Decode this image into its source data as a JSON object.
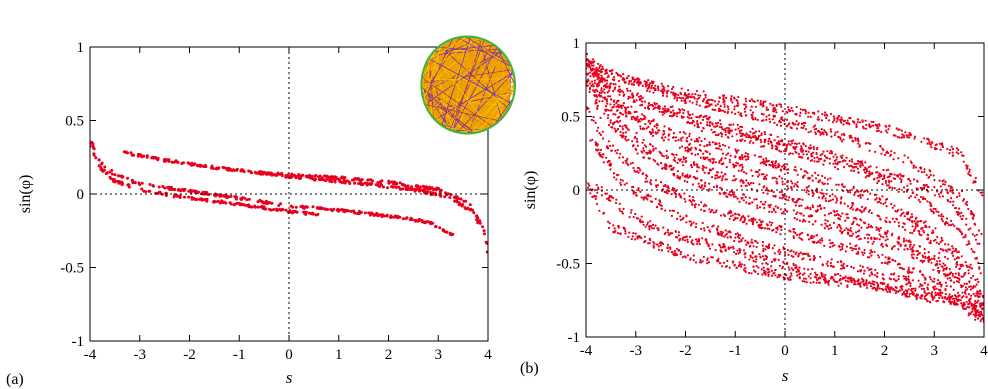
{
  "chart_data": [
    {
      "panel_label": "(a)",
      "type": "scatter",
      "xlabel": "s",
      "ylabel": "sin(φ)",
      "xlim": [
        -4,
        4
      ],
      "ylim": [
        -1,
        1
      ],
      "xticks": [
        "-4",
        "-3",
        "-2",
        "-1",
        "0",
        "1",
        "2",
        "3",
        "4"
      ],
      "yticks": [
        "-1",
        "-0.5",
        "0",
        "0.5",
        "1"
      ],
      "point_color": "#e8001c",
      "reference_lines": {
        "x": 0,
        "y": 0
      },
      "series": [
        {
          "x": [
            -4.0,
            -3.8,
            -3.5,
            -3.0,
            -2.0,
            -1.0,
            0.0,
            1.0,
            2.0,
            2.8,
            3.3
          ],
          "y": [
            0.38,
            0.22,
            0.13,
            0.07,
            0.02,
            -0.03,
            -0.08,
            -0.11,
            -0.15,
            -0.19,
            -0.28
          ]
        },
        {
          "x": [
            -3.3,
            -2.5,
            -1.5,
            0.0,
            1.5,
            2.5,
            3.2,
            3.7,
            3.95,
            4.0
          ],
          "y": [
            0.28,
            0.23,
            0.18,
            0.12,
            0.07,
            0.03,
            -0.02,
            -0.12,
            -0.3,
            -0.4
          ]
        },
        {
          "x": [
            -4.0,
            -3.8,
            -3.5,
            -3.0,
            -2.0,
            -1.0,
            0.0,
            0.6
          ],
          "y": [
            0.33,
            0.18,
            0.09,
            0.03,
            -0.03,
            -0.07,
            -0.12,
            -0.14
          ]
        },
        {
          "x": [
            -0.8,
            0.0,
            1.0,
            2.0,
            3.0,
            3.6,
            3.9,
            4.0
          ],
          "y": [
            0.15,
            0.13,
            0.11,
            0.08,
            0.03,
            -0.06,
            -0.22,
            -0.36
          ]
        }
      ],
      "inset": {
        "description": "billiard",
        "colors": [
          "#f5c400",
          "#e89a00",
          "#7a2fb0",
          "#b03060",
          "#3cb43c"
        ]
      }
    },
    {
      "panel_label": "(b)",
      "type": "scatter",
      "xlabel": "s",
      "ylabel": "sin(φ)",
      "xlim": [
        -4,
        4
      ],
      "ylim": [
        -1,
        1
      ],
      "xticks": [
        "-4",
        "-3",
        "-2",
        "-1",
        "0",
        "1",
        "2",
        "3",
        "4"
      ],
      "yticks": [
        "-1",
        "-0.5",
        "0",
        "0.5",
        "1"
      ],
      "point_color": "#e8001c",
      "reference_lines": {
        "x": 0,
        "y": 0
      },
      "series": [
        {
          "x": [
            -4.0,
            -3.5,
            -2.0,
            0.0,
            2.0,
            3.5,
            4.0
          ],
          "y": [
            0.9,
            0.78,
            0.66,
            0.55,
            0.42,
            0.25,
            -0.05
          ]
        },
        {
          "x": [
            -4.0,
            -3.6,
            -2.5,
            -1.0,
            0.5,
            2.0,
            3.3,
            3.9
          ],
          "y": [
            0.85,
            0.72,
            0.56,
            0.42,
            0.28,
            0.12,
            -0.05,
            -0.35
          ]
        },
        {
          "x": [
            -4.0,
            -3.6,
            -2.8,
            -1.5,
            0.0,
            1.5,
            2.8,
            3.6,
            4.0
          ],
          "y": [
            0.8,
            0.62,
            0.42,
            0.22,
            0.05,
            -0.12,
            -0.3,
            -0.55,
            -0.75
          ]
        },
        {
          "x": [
            -4.0,
            -3.7,
            -3.0,
            -2.0,
            -0.5,
            1.0,
            2.5,
            3.5,
            3.95
          ],
          "y": [
            0.72,
            0.52,
            0.28,
            0.08,
            -0.1,
            -0.25,
            -0.42,
            -0.62,
            -0.85
          ]
        },
        {
          "x": [
            -4.0,
            -3.6,
            -2.8,
            -1.6,
            0.0,
            1.6,
            2.8,
            3.6,
            4.0
          ],
          "y": [
            0.58,
            0.32,
            0.08,
            -0.12,
            -0.28,
            -0.42,
            -0.58,
            -0.72,
            -0.88
          ]
        },
        {
          "x": [
            -3.9,
            -3.3,
            -2.0,
            -0.5,
            1.0,
            2.5,
            3.6,
            4.0
          ],
          "y": [
            0.35,
            0.05,
            -0.2,
            -0.38,
            -0.5,
            -0.62,
            -0.76,
            -0.85
          ]
        },
        {
          "x": [
            -4.0,
            -3.5,
            -2.0,
            0.0,
            2.0,
            3.5,
            4.0
          ],
          "y": [
            0.05,
            -0.25,
            -0.45,
            -0.58,
            -0.66,
            -0.76,
            -0.88
          ]
        },
        {
          "x": [
            -3.9,
            -3.3,
            -2.0,
            -0.5,
            1.0,
            2.5,
            3.6,
            4.0
          ],
          "y": [
            0.85,
            0.76,
            0.62,
            0.5,
            0.38,
            0.2,
            -0.05,
            -0.35
          ]
        },
        {
          "x": [
            -4.0,
            -3.6,
            -2.8,
            -1.6,
            0.0,
            1.6,
            2.8,
            3.6,
            4.0
          ],
          "y": [
            0.88,
            0.72,
            0.58,
            0.42,
            0.28,
            0.12,
            -0.08,
            -0.32,
            -0.58
          ]
        },
        {
          "x": [
            -3.95,
            -3.5,
            -2.5,
            -1.0,
            0.5,
            2.0,
            3.0,
            3.7,
            4.0
          ],
          "y": [
            0.85,
            0.62,
            0.42,
            0.25,
            0.1,
            -0.08,
            -0.28,
            -0.52,
            -0.72
          ]
        },
        {
          "x": [
            -4.0,
            -3.6,
            -2.8,
            -1.5,
            0.0,
            1.5,
            2.8,
            3.6,
            4.0
          ],
          "y": [
            0.75,
            0.55,
            0.3,
            0.12,
            -0.05,
            -0.22,
            -0.42,
            -0.62,
            -0.8
          ]
        },
        {
          "x": [
            -3.9,
            -3.3,
            -2.5,
            -1.0,
            0.5,
            2.0,
            3.5,
            4.0
          ],
          "y": [
            0.05,
            -0.12,
            -0.28,
            -0.42,
            -0.56,
            -0.66,
            -0.78,
            -0.9
          ]
        }
      ]
    }
  ]
}
